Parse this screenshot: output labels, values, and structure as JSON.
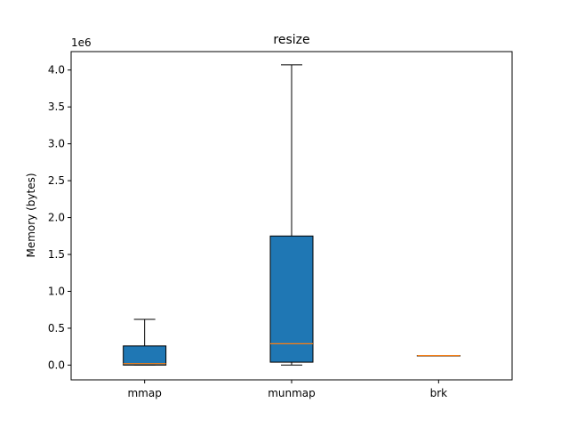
{
  "chart_data": {
    "type": "box",
    "title": "resize",
    "xlabel": "",
    "ylabel": "Memory (bytes)",
    "y_scale_label": "1e6",
    "ylim": [
      -0.2,
      4.25
    ],
    "yticks": [
      0.0,
      0.5,
      1.0,
      1.5,
      2.0,
      2.5,
      3.0,
      3.5,
      4.0
    ],
    "ytick_labels": [
      "0.0",
      "0.5",
      "1.0",
      "1.5",
      "2.0",
      "2.5",
      "3.0",
      "3.5",
      "4.0"
    ],
    "categories": [
      "mmap",
      "munmap",
      "brk"
    ],
    "boxes": [
      {
        "label": "mmap",
        "whisker_low": 0.0,
        "q1": 0.0,
        "median": 0.02,
        "q3": 0.26,
        "whisker_high": 0.62
      },
      {
        "label": "munmap",
        "whisker_low": 0.0,
        "q1": 0.04,
        "median": 0.29,
        "q3": 1.75,
        "whisker_high": 4.07
      },
      {
        "label": "brk",
        "whisker_low": 0.13,
        "q1": 0.13,
        "median": 0.13,
        "q3": 0.13,
        "whisker_high": 0.13
      }
    ],
    "colors": {
      "box_fill": "#1f77b4",
      "median": "#ff7f0e",
      "edge": "#000000"
    }
  }
}
